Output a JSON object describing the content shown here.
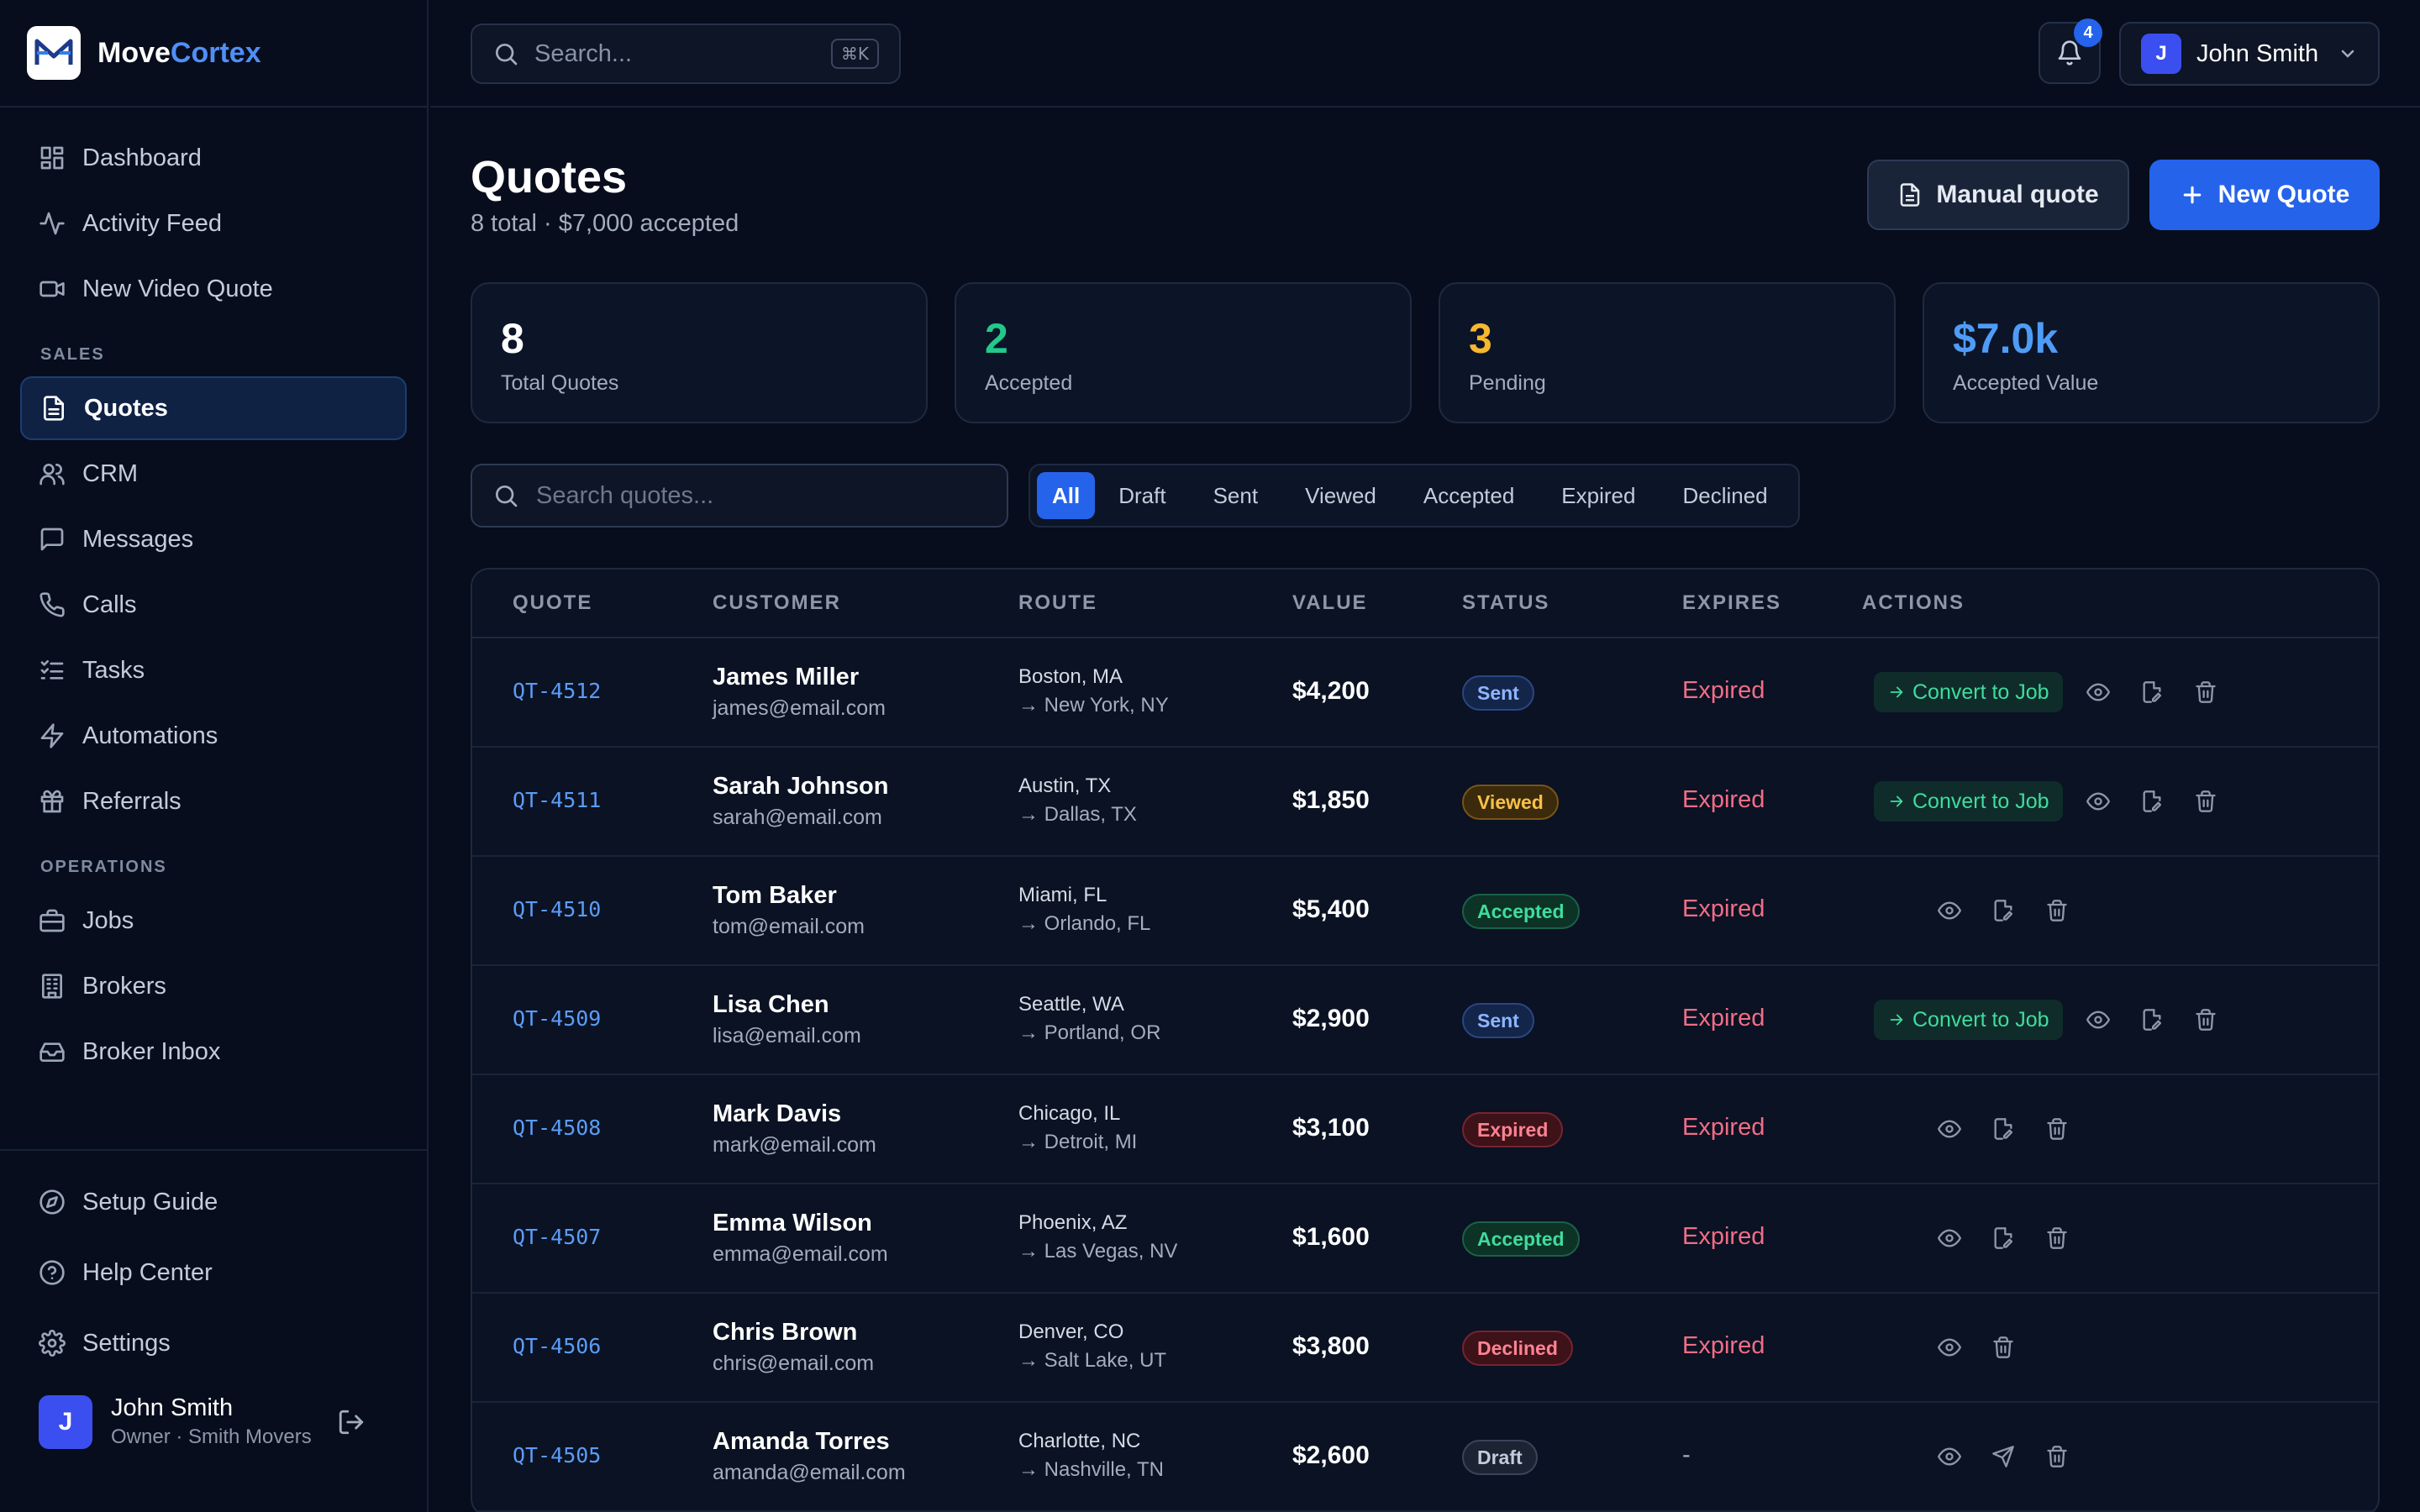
{
  "brand": {
    "name_part1": "Move",
    "name_part2": "Cortex"
  },
  "sidebar": {
    "top_items": [
      {
        "label": "Dashboard",
        "icon": "grid-icon"
      },
      {
        "label": "Activity Feed",
        "icon": "activity-icon"
      },
      {
        "label": "New Video Quote",
        "icon": "video-icon"
      }
    ],
    "sales_heading": "SALES",
    "sales_items": [
      {
        "label": "Quotes",
        "icon": "document-icon",
        "active": true
      },
      {
        "label": "CRM",
        "icon": "users-icon"
      },
      {
        "label": "Messages",
        "icon": "message-icon"
      },
      {
        "label": "Calls",
        "icon": "phone-icon"
      },
      {
        "label": "Tasks",
        "icon": "list-check-icon"
      },
      {
        "label": "Automations",
        "icon": "bolt-icon"
      },
      {
        "label": "Referrals",
        "icon": "gift-icon"
      }
    ],
    "operations_heading": "OPERATIONS",
    "operations_items": [
      {
        "label": "Jobs",
        "icon": "briefcase-icon"
      },
      {
        "label": "Brokers",
        "icon": "building-icon"
      },
      {
        "label": "Broker Inbox",
        "icon": "inbox-icon"
      }
    ],
    "bottom_items": [
      {
        "label": "Setup Guide",
        "icon": "compass-icon"
      },
      {
        "label": "Help Center",
        "icon": "help-icon"
      },
      {
        "label": "Settings",
        "icon": "gear-icon"
      }
    ],
    "user": {
      "initial": "J",
      "name": "John Smith",
      "role": "Owner",
      "company": "Smith Movers"
    }
  },
  "topbar": {
    "search_placeholder": "Search...",
    "shortcut": "⌘K",
    "notification_count": "4",
    "user_initial": "J",
    "user_name": "John Smith"
  },
  "page": {
    "title": "Quotes",
    "subtitle": "8 total · $7,000 accepted",
    "manual_quote_label": "Manual quote",
    "new_quote_label": "New Quote"
  },
  "stats": [
    {
      "value": "8",
      "label": "Total Quotes",
      "color": "#ffffff"
    },
    {
      "value": "2",
      "label": "Accepted",
      "color": "#22c98b"
    },
    {
      "value": "3",
      "label": "Pending",
      "color": "#f5b82e"
    },
    {
      "value": "$7.0k",
      "label": "Accepted Value",
      "color": "#4f9cf7"
    }
  ],
  "filters": {
    "search_placeholder": "Search quotes...",
    "tabs": [
      "All",
      "Draft",
      "Sent",
      "Viewed",
      "Accepted",
      "Expired",
      "Declined"
    ],
    "active_tab": "All"
  },
  "table": {
    "headers": [
      "QUOTE",
      "CUSTOMER",
      "ROUTE",
      "VALUE",
      "STATUS",
      "EXPIRES",
      "ACTIONS"
    ],
    "convert_label": "Convert to Job",
    "rows": [
      {
        "id": "QT-4512",
        "name": "James Miller",
        "email": "james@email.com",
        "from": "Boston, MA",
        "to": "→ New York, NY",
        "value": "$4,200",
        "status": "Sent",
        "expires": "Expired",
        "convert": true,
        "actions": [
          "eye-icon",
          "edit-icon",
          "trash-icon"
        ]
      },
      {
        "id": "QT-4511",
        "name": "Sarah Johnson",
        "email": "sarah@email.com",
        "from": "Austin, TX",
        "to": "→ Dallas, TX",
        "value": "$1,850",
        "status": "Viewed",
        "expires": "Expired",
        "convert": true,
        "actions": [
          "eye-icon",
          "edit-icon",
          "trash-icon"
        ]
      },
      {
        "id": "QT-4510",
        "name": "Tom Baker",
        "email": "tom@email.com",
        "from": "Miami, FL",
        "to": "→ Orlando, FL",
        "value": "$5,400",
        "status": "Accepted",
        "expires": "Expired",
        "convert": false,
        "actions": [
          "eye-icon",
          "edit-icon",
          "trash-icon"
        ]
      },
      {
        "id": "QT-4509",
        "name": "Lisa Chen",
        "email": "lisa@email.com",
        "from": "Seattle, WA",
        "to": "→ Portland, OR",
        "value": "$2,900",
        "status": "Sent",
        "expires": "Expired",
        "convert": true,
        "actions": [
          "eye-icon",
          "edit-icon",
          "trash-icon"
        ]
      },
      {
        "id": "QT-4508",
        "name": "Mark Davis",
        "email": "mark@email.com",
        "from": "Chicago, IL",
        "to": "→ Detroit, MI",
        "value": "$3,100",
        "status": "Expired",
        "expires": "Expired",
        "convert": false,
        "actions": [
          "eye-icon",
          "edit-icon",
          "trash-icon"
        ]
      },
      {
        "id": "QT-4507",
        "name": "Emma Wilson",
        "email": "emma@email.com",
        "from": "Phoenix, AZ",
        "to": "→ Las Vegas, NV",
        "value": "$1,600",
        "status": "Accepted",
        "expires": "Expired",
        "convert": false,
        "actions": [
          "eye-icon",
          "edit-icon",
          "trash-icon"
        ]
      },
      {
        "id": "QT-4506",
        "name": "Chris Brown",
        "email": "chris@email.com",
        "from": "Denver, CO",
        "to": "→ Salt Lake, UT",
        "value": "$3,800",
        "status": "Declined",
        "expires": "Expired",
        "convert": false,
        "actions": [
          "eye-icon",
          "trash-icon"
        ]
      },
      {
        "id": "QT-4505",
        "name": "Amanda Torres",
        "email": "amanda@email.com",
        "from": "Charlotte, NC",
        "to": "→ Nashville, TN",
        "value": "$2,600",
        "status": "Draft",
        "expires": "-",
        "convert": false,
        "actions": [
          "eye-icon",
          "send-icon",
          "trash-icon"
        ]
      }
    ]
  }
}
